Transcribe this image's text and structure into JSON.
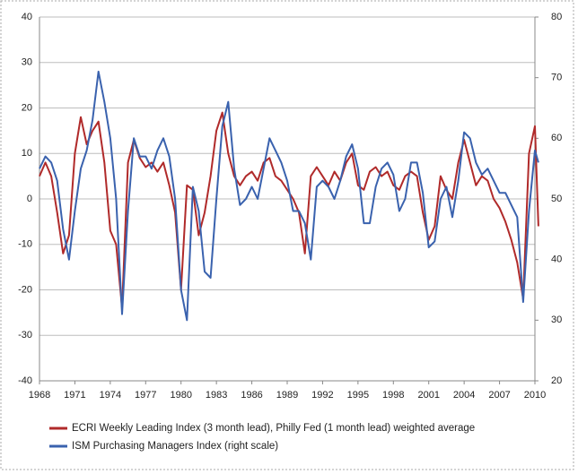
{
  "chart_data": {
    "type": "line",
    "x": [
      1968.0,
      1968.5,
      1969.0,
      1969.5,
      1970.0,
      1970.5,
      1971.0,
      1971.5,
      1972.0,
      1972.5,
      1973.0,
      1973.5,
      1974.0,
      1974.5,
      1975.0,
      1975.5,
      1976.0,
      1976.5,
      1977.0,
      1977.5,
      1978.0,
      1978.5,
      1979.0,
      1979.5,
      1980.0,
      1980.5,
      1981.0,
      1981.5,
      1982.0,
      1982.5,
      1983.0,
      1983.5,
      1984.0,
      1984.5,
      1985.0,
      1985.5,
      1986.0,
      1986.5,
      1987.0,
      1987.5,
      1988.0,
      1988.5,
      1989.0,
      1989.5,
      1990.0,
      1990.5,
      1991.0,
      1991.5,
      1992.0,
      1992.5,
      1993.0,
      1993.5,
      1994.0,
      1994.5,
      1995.0,
      1995.5,
      1996.0,
      1996.5,
      1997.0,
      1997.5,
      1998.0,
      1998.5,
      1999.0,
      1999.5,
      2000.0,
      2000.5,
      2001.0,
      2001.5,
      2002.0,
      2002.5,
      2003.0,
      2003.5,
      2004.0,
      2004.5,
      2005.0,
      2005.5,
      2006.0,
      2006.5,
      2007.0,
      2007.5,
      2008.0,
      2008.5,
      2009.0,
      2009.5,
      2010.0,
      2010.3
    ],
    "series": [
      {
        "name": "ECRI Weekly Leading Index (3 month lead), Philly Fed (1 month lead) weighted average",
        "color": "#b02a2a",
        "values": [
          5,
          8,
          5,
          -3,
          -12,
          -8,
          10,
          18,
          12,
          15,
          17,
          8,
          -7,
          -10,
          -24,
          8,
          13,
          9,
          7,
          8,
          6,
          8,
          3,
          -3,
          -20,
          3,
          2,
          -8,
          -3,
          5,
          15,
          19,
          10,
          5,
          3,
          5,
          6,
          4,
          8,
          9,
          5,
          4,
          2,
          0,
          -3,
          -12,
          5,
          7,
          5,
          3,
          6,
          4,
          8,
          10,
          3,
          2,
          6,
          7,
          5,
          6,
          3,
          2,
          5,
          6,
          5,
          -3,
          -9,
          -6,
          5,
          2,
          0,
          8,
          13,
          8,
          3,
          5,
          4,
          0,
          -2,
          -5,
          -9,
          -14,
          -22,
          10,
          16,
          -6
        ]
      },
      {
        "name": "ISM Purchasing Managers Index (right scale)",
        "color": "#3a62ae",
        "axis": "y2",
        "values": [
          55,
          57,
          56,
          53,
          45,
          40,
          48,
          55,
          58,
          63,
          71,
          66,
          60,
          50,
          31,
          48,
          60,
          57,
          57,
          55,
          58,
          60,
          57,
          50,
          35,
          30,
          52,
          48,
          38,
          37,
          50,
          62,
          66,
          55,
          49,
          50,
          52,
          50,
          55,
          60,
          58,
          56,
          53,
          48,
          48,
          46,
          40,
          52,
          53,
          52,
          50,
          53,
          57,
          59,
          55,
          46,
          46,
          52,
          55,
          56,
          54,
          48,
          50,
          56,
          56,
          51,
          42,
          43,
          50,
          52,
          47,
          53,
          61,
          60,
          56,
          54,
          55,
          53,
          51,
          51,
          49,
          47,
          33,
          48,
          58,
          56
        ]
      }
    ],
    "xlim": [
      1968,
      2010
    ],
    "xticks": [
      1968,
      1971,
      1974,
      1977,
      1980,
      1983,
      1986,
      1989,
      1992,
      1995,
      1998,
      2001,
      2004,
      2007,
      2010
    ],
    "ylim": [
      -40,
      40
    ],
    "yticks": [
      -40,
      -30,
      -20,
      -10,
      0,
      10,
      20,
      30,
      40
    ],
    "y2lim": [
      20,
      80
    ],
    "y2ticks": [
      20,
      30,
      40,
      50,
      60,
      70,
      80
    ],
    "grid": true,
    "legend": "bottom"
  }
}
